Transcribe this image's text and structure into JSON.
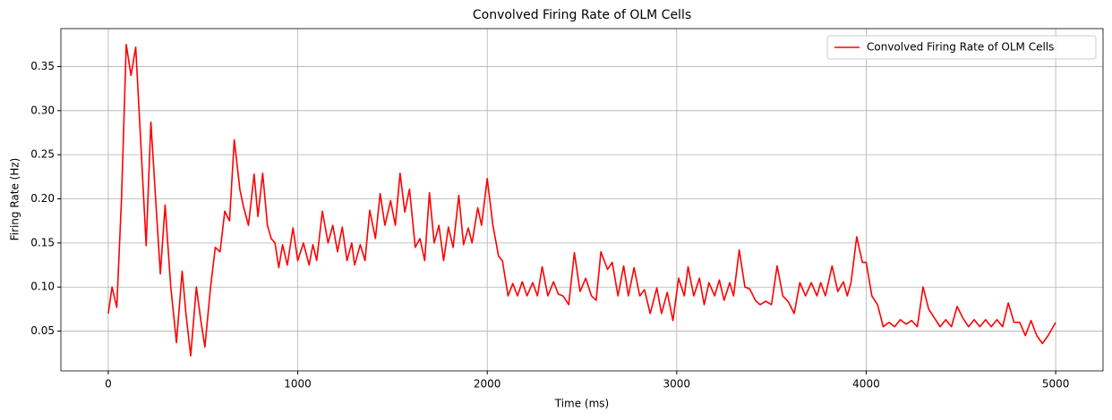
{
  "chart_data": {
    "type": "line",
    "title": "Convolved Firing Rate of OLM Cells",
    "x_label": "Time (ms)",
    "y_label": "Firing Rate (Hz)",
    "x": [
      0,
      20,
      45,
      70,
      95,
      120,
      145,
      175,
      200,
      225,
      250,
      275,
      300,
      330,
      360,
      390,
      410,
      435,
      465,
      490,
      510,
      540,
      565,
      590,
      615,
      640,
      665,
      695,
      715,
      740,
      770,
      790,
      815,
      840,
      860,
      880,
      900,
      920,
      945,
      975,
      1000,
      1030,
      1060,
      1080,
      1100,
      1130,
      1160,
      1185,
      1210,
      1235,
      1260,
      1285,
      1300,
      1330,
      1355,
      1380,
      1410,
      1435,
      1460,
      1490,
      1515,
      1540,
      1565,
      1590,
      1620,
      1645,
      1670,
      1695,
      1720,
      1745,
      1770,
      1795,
      1820,
      1850,
      1875,
      1900,
      1920,
      1950,
      1970,
      2000,
      2030,
      2060,
      2080,
      2110,
      2135,
      2160,
      2185,
      2210,
      2240,
      2265,
      2290,
      2320,
      2350,
      2375,
      2400,
      2430,
      2460,
      2490,
      2520,
      2550,
      2575,
      2600,
      2635,
      2660,
      2690,
      2720,
      2745,
      2775,
      2805,
      2830,
      2860,
      2895,
      2920,
      2950,
      2980,
      3010,
      3040,
      3060,
      3090,
      3120,
      3145,
      3170,
      3200,
      3225,
      3250,
      3280,
      3300,
      3330,
      3360,
      3385,
      3415,
      3440,
      3470,
      3500,
      3530,
      3560,
      3590,
      3620,
      3650,
      3680,
      3710,
      3740,
      3760,
      3785,
      3820,
      3850,
      3880,
      3900,
      3920,
      3950,
      3980,
      4000,
      4030,
      4060,
      4090,
      4120,
      4150,
      4180,
      4210,
      4240,
      4270,
      4300,
      4330,
      4360,
      4390,
      4420,
      4450,
      4480,
      4510,
      4540,
      4570,
      4600,
      4630,
      4660,
      4690,
      4720,
      4750,
      4780,
      4810,
      4840,
      4870,
      4900,
      4930,
      4960,
      5000
    ],
    "series": [
      {
        "name": "Convolved Firing Rate of OLM Cells",
        "color": "#ff0000",
        "values": [
          0.07,
          0.1,
          0.077,
          0.2,
          0.375,
          0.34,
          0.372,
          0.25,
          0.147,
          0.287,
          0.2,
          0.115,
          0.193,
          0.1,
          0.037,
          0.118,
          0.07,
          0.022,
          0.1,
          0.06,
          0.032,
          0.1,
          0.145,
          0.14,
          0.186,
          0.175,
          0.267,
          0.21,
          0.19,
          0.17,
          0.228,
          0.18,
          0.229,
          0.17,
          0.155,
          0.15,
          0.122,
          0.148,
          0.125,
          0.167,
          0.13,
          0.15,
          0.125,
          0.148,
          0.13,
          0.186,
          0.15,
          0.17,
          0.14,
          0.168,
          0.13,
          0.15,
          0.125,
          0.148,
          0.13,
          0.187,
          0.155,
          0.206,
          0.17,
          0.198,
          0.17,
          0.229,
          0.185,
          0.211,
          0.145,
          0.155,
          0.13,
          0.207,
          0.15,
          0.17,
          0.13,
          0.168,
          0.145,
          0.204,
          0.148,
          0.167,
          0.15,
          0.19,
          0.17,
          0.223,
          0.17,
          0.135,
          0.13,
          0.09,
          0.104,
          0.09,
          0.106,
          0.09,
          0.105,
          0.09,
          0.123,
          0.09,
          0.106,
          0.092,
          0.09,
          0.08,
          0.139,
          0.095,
          0.11,
          0.09,
          0.085,
          0.14,
          0.12,
          0.128,
          0.09,
          0.124,
          0.09,
          0.122,
          0.09,
          0.097,
          0.07,
          0.099,
          0.07,
          0.094,
          0.062,
          0.11,
          0.09,
          0.123,
          0.09,
          0.11,
          0.08,
          0.105,
          0.09,
          0.108,
          0.085,
          0.105,
          0.09,
          0.142,
          0.1,
          0.098,
          0.085,
          0.08,
          0.084,
          0.08,
          0.124,
          0.09,
          0.083,
          0.07,
          0.105,
          0.09,
          0.105,
          0.09,
          0.105,
          0.09,
          0.124,
          0.095,
          0.106,
          0.09,
          0.105,
          0.157,
          0.128,
          0.128,
          0.09,
          0.08,
          0.055,
          0.06,
          0.055,
          0.063,
          0.058,
          0.062,
          0.055,
          0.1,
          0.075,
          0.065,
          0.055,
          0.063,
          0.055,
          0.078,
          0.065,
          0.055,
          0.063,
          0.055,
          0.063,
          0.055,
          0.063,
          0.055,
          0.082,
          0.06,
          0.06,
          0.045,
          0.062,
          0.045,
          0.036,
          0.045,
          0.06
        ]
      }
    ],
    "xlim": [
      -250,
      5250
    ],
    "ylim": [
      0.005,
      0.393
    ],
    "xticks": [
      0,
      1000,
      2000,
      3000,
      4000,
      5000
    ],
    "yticks": [
      0.05,
      {
        "value": 0.1,
        "label": "0.10"
      },
      0.15,
      {
        "value": 0.2,
        "label": "0.20"
      },
      0.25,
      {
        "value": 0.3,
        "label": "0.30"
      },
      0.35
    ],
    "grid": true,
    "legend": "upper right"
  }
}
